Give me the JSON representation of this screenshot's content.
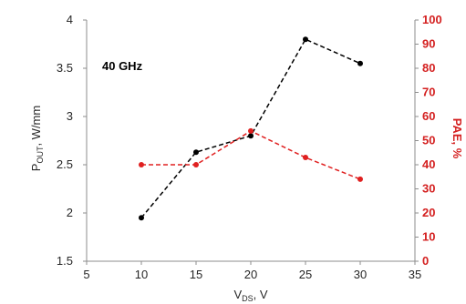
{
  "chart_data": {
    "type": "line",
    "annotation": "40 GHz",
    "xlabel": {
      "main": "V",
      "sub": "DS",
      "suffix": ", V"
    },
    "ylabel_left": {
      "main": "P",
      "sub": "OUT",
      "suffix": ", W/mm"
    },
    "ylabel_right": "PAE, %",
    "xlim": [
      5,
      35
    ],
    "ylim_left": [
      1.5,
      4
    ],
    "ylim_right": [
      0,
      100
    ],
    "x_ticks": [
      "5",
      "10",
      "15",
      "20",
      "25",
      "30",
      "35"
    ],
    "y_left_ticks": [
      "1.5",
      "2",
      "2.5",
      "3",
      "3.5",
      "4"
    ],
    "y_right_ticks": [
      "0",
      "10",
      "20",
      "30",
      "40",
      "50",
      "60",
      "70",
      "80",
      "90",
      "100"
    ],
    "grid": false,
    "series": [
      {
        "axis": "left",
        "color": "#000000",
        "style": "dashed",
        "x": [
          10,
          15,
          20,
          25,
          30
        ],
        "y": [
          1.95,
          2.63,
          2.8,
          3.8,
          3.55
        ]
      },
      {
        "axis": "right",
        "color": "#e02020",
        "style": "dashed",
        "x": [
          10,
          15,
          20,
          25,
          30
        ],
        "y": [
          40,
          40,
          54,
          43,
          34
        ]
      }
    ]
  }
}
